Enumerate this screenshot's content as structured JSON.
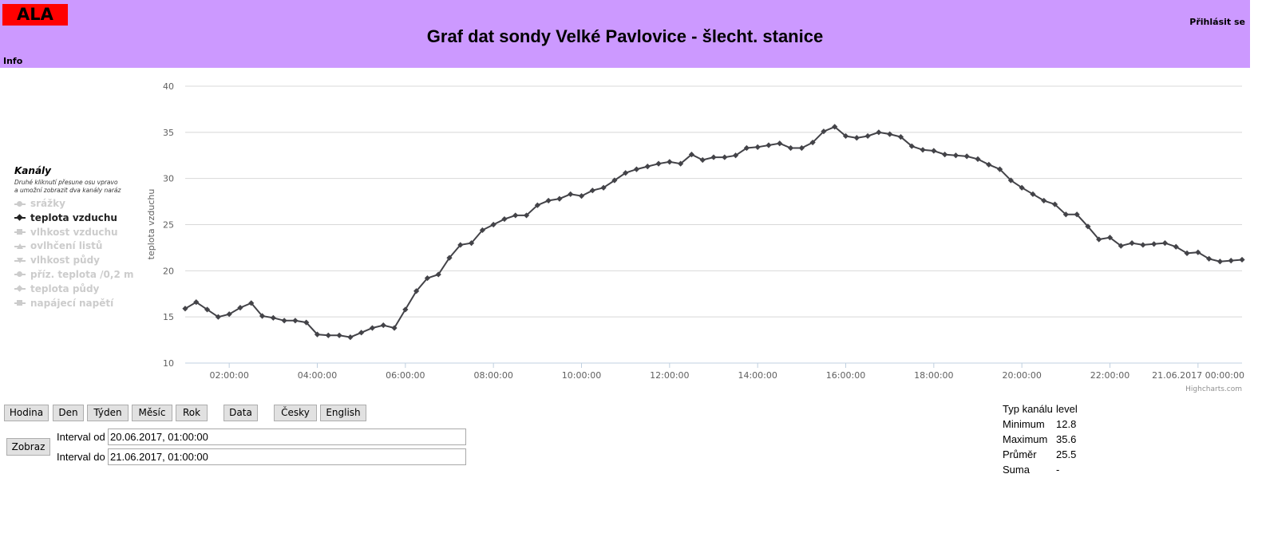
{
  "header": {
    "logo": "ALA",
    "title": "Graf dat sondy Velké Pavlovice - šlecht. stanice",
    "login": "Přihlásit se",
    "info": "Info"
  },
  "legend": {
    "title": "Kanály",
    "hint_line1": "Druhé kliknutí přesune osu vpravo",
    "hint_line2": "a umožní zobrazit dva kanály naráz",
    "items": [
      {
        "label": "srážky",
        "icon": "circle-marker-icon",
        "active": false
      },
      {
        "label": "teplota vzduchu",
        "icon": "diamond-marker-icon",
        "active": true
      },
      {
        "label": "vlhkost vzduchu",
        "icon": "square-marker-icon",
        "active": false
      },
      {
        "label": "ovlhčení listů",
        "icon": "triangle-marker-icon",
        "active": false
      },
      {
        "label": "vlhkost půdy",
        "icon": "triangle-down-marker-icon",
        "active": false
      },
      {
        "label": "příz. teplota /0,2 m",
        "icon": "circle-marker-icon",
        "active": false
      },
      {
        "label": "teplota půdy",
        "icon": "diamond-marker-icon",
        "active": false
      },
      {
        "label": "napájecí napětí",
        "icon": "square-marker-icon",
        "active": false
      }
    ]
  },
  "chart_data": {
    "type": "line",
    "ylabel": "teplota vzduchu",
    "ylim": [
      10,
      40
    ],
    "y_ticks": [
      "10",
      "15",
      "20",
      "25",
      "30",
      "35",
      "40"
    ],
    "x_tick_labels": [
      "02:00:00",
      "04:00:00",
      "06:00:00",
      "08:00:00",
      "10:00:00",
      "12:00:00",
      "14:00:00",
      "16:00:00",
      "18:00:00",
      "20:00:00",
      "22:00:00",
      "21.06.2017 00:00:00"
    ],
    "x_range_hours": [
      1,
      25
    ],
    "x_tick_hours": [
      2,
      4,
      6,
      8,
      10,
      12,
      14,
      16,
      18,
      20,
      22,
      24
    ],
    "grid": true,
    "credit": "Highcharts.com",
    "line_color": "#434348",
    "series": [
      {
        "name": "teplota vzduchu",
        "x_start_hour": 1,
        "x_step_hours": 0.25,
        "values": [
          15.9,
          16.6,
          15.8,
          15.0,
          15.3,
          16.0,
          16.5,
          15.1,
          14.9,
          14.6,
          14.6,
          14.4,
          13.1,
          13.0,
          13.0,
          12.8,
          13.3,
          13.8,
          14.1,
          13.8,
          15.8,
          17.8,
          19.2,
          19.6,
          21.4,
          22.8,
          23.0,
          24.4,
          25.0,
          25.6,
          26.0,
          26.0,
          27.1,
          27.6,
          27.8,
          28.3,
          28.1,
          28.7,
          29.0,
          29.8,
          30.6,
          31.0,
          31.3,
          31.6,
          31.8,
          31.6,
          32.6,
          32.0,
          32.3,
          32.3,
          32.5,
          33.3,
          33.4,
          33.6,
          33.8,
          33.3,
          33.3,
          33.9,
          35.1,
          35.6,
          34.6,
          34.4,
          34.6,
          35.0,
          34.8,
          34.5,
          33.5,
          33.1,
          33.0,
          32.6,
          32.5,
          32.4,
          32.1,
          31.5,
          31.0,
          29.8,
          29.0,
          28.3,
          27.6,
          27.2,
          26.1,
          26.1,
          24.8,
          23.4,
          23.6,
          22.7,
          23.0,
          22.8,
          22.9,
          23.0,
          22.6,
          21.9,
          22.0,
          21.3,
          21.0,
          21.1,
          21.2
        ]
      }
    ]
  },
  "buttons": {
    "hour": "Hodina",
    "day": "Den",
    "week": "Týden",
    "month": "Měsíc",
    "year": "Rok",
    "data": "Data",
    "czech": "Česky",
    "english": "English",
    "show": "Zobraz"
  },
  "interval": {
    "from_label": "Interval od",
    "from_value": "20.06.2017, 01:00:00",
    "to_label": "Interval do",
    "to_value": "21.06.2017, 01:00:00"
  },
  "stats": {
    "type_label": "Typ kanálu",
    "type_value": "level",
    "min_label": "Minimum",
    "min_value": "12.8",
    "max_label": "Maximum",
    "max_value": "35.6",
    "avg_label": "Průměr",
    "avg_value": "25.5",
    "sum_label": "Suma",
    "sum_value": "-"
  }
}
